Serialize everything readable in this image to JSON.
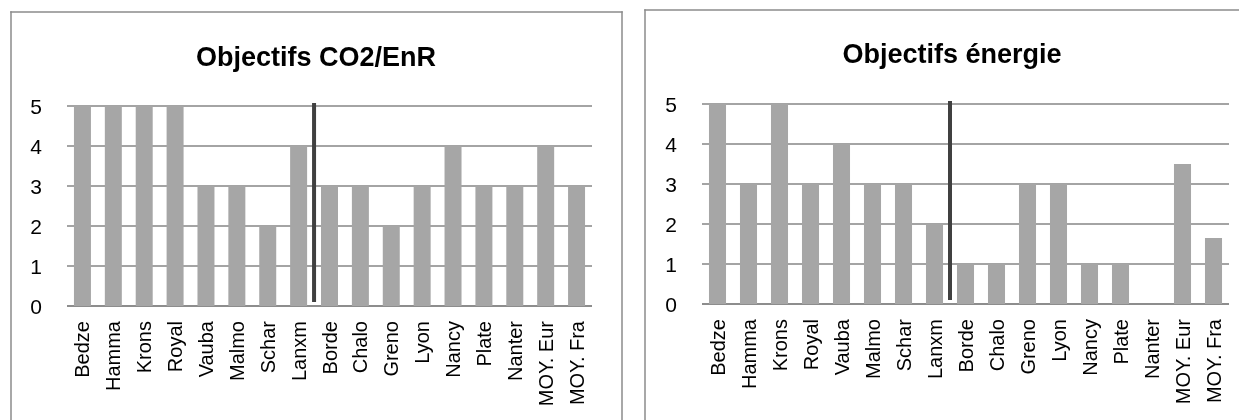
{
  "chart_data": [
    {
      "type": "bar",
      "title": "Objectifs CO2/EnR",
      "categories": [
        "Bedze",
        "Hamma",
        "Krons",
        "Royal",
        "Vauba",
        "Malmo",
        "Schar",
        "Lanxm",
        "Borde",
        "Chalo",
        "Greno",
        "Lyon",
        "Nancy",
        "Plate",
        "Nanter",
        "MOY. Eur",
        "MOY. Fra"
      ],
      "values": [
        5,
        5,
        5,
        5,
        3,
        3,
        2,
        4,
        3,
        3,
        2,
        3,
        4,
        3,
        3,
        4,
        3
      ],
      "color": "#a6a6a6",
      "ylim": [
        0,
        5
      ],
      "yticks": [
        0,
        1,
        2,
        3,
        4,
        5
      ],
      "grid": "y"
    },
    {
      "type": "bar",
      "title": "Objectifs énergie",
      "categories": [
        "Bedze",
        "Hamma",
        "Krons",
        "Royal",
        "Vauba",
        "Malmo",
        "Schar",
        "Lanxm",
        "Borde",
        "Chalo",
        "Greno",
        "Lyon",
        "Nancy",
        "Plate",
        "Nanter",
        "MOY. Eur",
        "MOY. Fra"
      ],
      "values": [
        5,
        3,
        5,
        3,
        4,
        3,
        3,
        2,
        1,
        1,
        3,
        3,
        1,
        1,
        null,
        3.5,
        1.65
      ],
      "color": "#a6a6a6",
      "ylim": [
        0,
        5
      ],
      "yticks": [
        0,
        1,
        2,
        3,
        4,
        5
      ],
      "grid": "y"
    }
  ]
}
